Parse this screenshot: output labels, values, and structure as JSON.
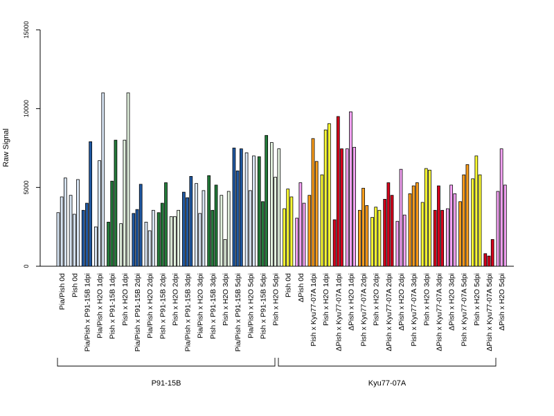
{
  "chart_data": {
    "type": "bar",
    "ylabel": "Raw Signal",
    "ylim": [
      0,
      15000
    ],
    "yticks": [
      0,
      5000,
      10000,
      15000
    ],
    "grid": false,
    "legend": "none",
    "groups": [
      {
        "label": "P91-15B",
        "categories": [
          "Pia/Pish 0d",
          "Pish 0d",
          "Pia/Pish x P91-15B 1dpi",
          "Pia/Pish x H2O 1dpi",
          "Pish x P91-15B 1dpi",
          "Pish x H2O 1dpi",
          "Pia/Pish x P91-15B 2dpi",
          "Pia/Pish x H2O 2dpi",
          "Pish x P91-15B 2dpi",
          "Pish x H2O 2dpi",
          "Pia/Pish x P91-15B 3dpi",
          "Pia/Pish x H2O 3dpi",
          "Pish x P91-15B 3dpi",
          "Pish x H2O 3dpi",
          "Pia/Pish x P91-15B 5dpi",
          "Pia/Pish x H2O 5dpi",
          "Pish x P91-15B 5dpi",
          "Pish x H2O 5dpi"
        ]
      },
      {
        "label": "Kyu77-07A",
        "categories": [
          "Pish 0d",
          "ΔPish 0d",
          "Pish x Kyu77-07A 1dpi",
          "Pish x H2O 1dpi",
          "ΔPish x Kyu77-07A 1dpi",
          "ΔPish x H2O 1dpi",
          "Pish x Kyu77-07A 2dpi",
          "Pish x H2O 2dpi",
          "ΔPish x Kyu77-07A 2dpi",
          "ΔPish x H2O 2dpi",
          "Pish x Kyu77-07A 3dpi",
          "Pish x H2O 3dpi",
          "ΔPish x Kyu77-07A 3dpi",
          "ΔPish x H2O 3dpi",
          "Pish x Kyu77-07A 5dpi",
          "Pish x H2O 5dpi",
          "ΔPish x Kyu77-07A 5dpi",
          "ΔPish x H2O 5dpi"
        ]
      }
    ],
    "categories": [
      "Pia/Pish 0d",
      "Pish 0d",
      "Pia/Pish x P91-15B 1dpi",
      "Pia/Pish x H2O 1dpi",
      "Pish x P91-15B 1dpi",
      "Pish x H2O 1dpi",
      "Pia/Pish x P91-15B 2dpi",
      "Pia/Pish x H2O 2dpi",
      "Pish x P91-15B 2dpi",
      "Pish x H2O 2dpi",
      "Pia/Pish x P91-15B 3dpi",
      "Pia/Pish x H2O 3dpi",
      "Pish x P91-15B 3dpi",
      "Pish x H2O 3dpi",
      "Pia/Pish x P91-15B 5dpi",
      "Pia/Pish x H2O 5dpi",
      "Pish x P91-15B 5dpi",
      "Pish x H2O 5dpi",
      "Pish 0d",
      "ΔPish 0d",
      "Pish x Kyu77-07A 1dpi",
      "Pish x H2O 1dpi",
      "ΔPish x Kyu77-07A 1dpi",
      "ΔPish x H2O 1dpi",
      "Pish x Kyu77-07A 2dpi",
      "Pish x H2O 2dpi",
      "ΔPish x Kyu77-07A 2dpi",
      "ΔPish x H2O 2dpi",
      "Pish x Kyu77-07A 3dpi",
      "Pish x H2O 3dpi",
      "ΔPish x Kyu77-07A 3dpi",
      "ΔPish x H2O 3dpi",
      "Pish x Kyu77-07A 5dpi",
      "Pish x H2O 5dpi",
      "ΔPish x Kyu77-07A 5dpi",
      "ΔPish x H2O 5dpi"
    ],
    "colors": [
      "#d9e6f5",
      "#d9e6f5",
      "#2059a3",
      "#d9e6f5",
      "#237a3a",
      "#e3f2df",
      "#2059a3",
      "#d9e6f5",
      "#237a3a",
      "#e3f2df",
      "#2059a3",
      "#d9e6f5",
      "#237a3a",
      "#e3f2df",
      "#2059a3",
      "#d9e6f5",
      "#237a3a",
      "#e3f2df",
      "#ffff33",
      "#f5a3f5",
      "#ff9f1c",
      "#ffff33",
      "#d7001c",
      "#f5a3f5",
      "#ff9f1c",
      "#ffff33",
      "#d7001c",
      "#f5a3f5",
      "#ff9f1c",
      "#ffff33",
      "#d7001c",
      "#f5a3f5",
      "#ff9f1c",
      "#ffff33",
      "#d7001c",
      "#f5a3f5"
    ],
    "values": [
      [
        3400,
        4400,
        5600
      ],
      [
        4500,
        3300,
        5500
      ],
      [
        3550,
        4000,
        7900
      ],
      [
        2500,
        6700,
        11000
      ],
      [
        2800,
        5400,
        8000
      ],
      [
        2700,
        8000,
        11000
      ],
      [
        3350,
        3600,
        5200
      ],
      [
        2800,
        2250,
        3550
      ],
      [
        3400,
        4000,
        5300
      ],
      [
        3150,
        3150,
        3550
      ],
      [
        4700,
        4350,
        5700
      ],
      [
        5250,
        3350,
        4800
      ],
      [
        5750,
        3550,
        5150
      ],
      [
        4500,
        1700,
        4750
      ],
      [
        7500,
        6050,
        7450
      ],
      [
        7200,
        4800,
        7000
      ],
      [
        6950,
        4100,
        8300
      ],
      [
        7850,
        5650,
        7450
      ],
      [
        3650,
        4900,
        4400
      ],
      [
        3050,
        5300,
        4000
      ],
      [
        4500,
        8100,
        6650
      ],
      [
        5800,
        8650,
        9050
      ],
      [
        2950,
        9500,
        7450
      ],
      [
        7450,
        9800,
        7550
      ],
      [
        3550,
        4950,
        3850
      ],
      [
        3100,
        3750,
        3550
      ],
      [
        4250,
        5300,
        4500
      ],
      [
        2850,
        6150,
        3250
      ],
      [
        4600,
        5100,
        5300
      ],
      [
        4050,
        6200,
        6100
      ],
      [
        3550,
        5100,
        3550
      ],
      [
        3650,
        5150,
        4600
      ],
      [
        4100,
        5800,
        6450
      ],
      [
        5550,
        7000,
        5800
      ],
      [
        800,
        650,
        1700
      ],
      [
        4750,
        7450,
        5150
      ]
    ]
  }
}
